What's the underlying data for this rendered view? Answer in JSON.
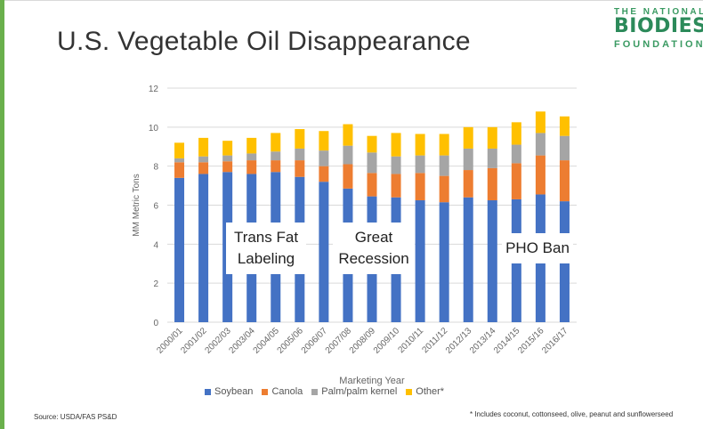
{
  "slide": {
    "title": "U.S. Vegetable Oil Disappearance",
    "source": "Source: USDA/FAS PS&D",
    "footnote": "* Includes coconut, cottonseed, olive, peanut and sunflowerseed"
  },
  "logo": {
    "line1": "THE NATIONAL",
    "line2": "BIODIESEL",
    "line3": "FOUNDATION"
  },
  "annotations": {
    "trans_fat": "Trans Fat\nLabeling",
    "great_recession": "Great\nRecession",
    "pho_ban": "PHO Ban"
  },
  "colors": {
    "soybean": "#4472c4",
    "canola": "#ed7d31",
    "palm": "#a5a5a5",
    "other": "#ffc000",
    "accent": "#6ab04c"
  },
  "chart_data": {
    "type": "bar",
    "stacked": true,
    "title": "",
    "xlabel": "Marketing Year",
    "ylabel": "MM Metric Tons",
    "ylim": [
      0,
      12
    ],
    "yticks": [
      0,
      2,
      4,
      6,
      8,
      10,
      12
    ],
    "grid": true,
    "legend_position": "bottom",
    "categories": [
      "2000/01",
      "2001/02",
      "2002/03",
      "2003/04",
      "2004/05",
      "2005/06",
      "2006/07",
      "2007/08",
      "2008/09",
      "2009/10",
      "2010/11",
      "2011/12",
      "2012/13",
      "2013/14",
      "2014/15",
      "2015/16",
      "2016/17"
    ],
    "series": [
      {
        "name": "Soybean",
        "values": [
          7.4,
          7.6,
          7.7,
          7.6,
          7.7,
          7.45,
          7.2,
          6.85,
          6.45,
          6.4,
          6.25,
          6.15,
          6.4,
          6.25,
          6.3,
          6.55,
          6.2
        ]
      },
      {
        "name": "Canola",
        "values": [
          0.8,
          0.6,
          0.55,
          0.7,
          0.6,
          0.85,
          0.8,
          1.25,
          1.2,
          1.2,
          1.4,
          1.35,
          1.4,
          1.65,
          1.85,
          2.0,
          2.1
        ]
      },
      {
        "name": "Palm/palm kernel",
        "values": [
          0.2,
          0.3,
          0.3,
          0.35,
          0.45,
          0.6,
          0.8,
          0.95,
          1.05,
          0.9,
          0.9,
          1.05,
          1.1,
          1.0,
          0.95,
          1.15,
          1.25
        ]
      },
      {
        "name": "Other*",
        "values": [
          0.8,
          0.95,
          0.75,
          0.8,
          0.95,
          1.0,
          1.0,
          1.1,
          0.85,
          1.2,
          1.1,
          1.1,
          1.1,
          1.1,
          1.15,
          1.1,
          1.0
        ]
      }
    ]
  }
}
